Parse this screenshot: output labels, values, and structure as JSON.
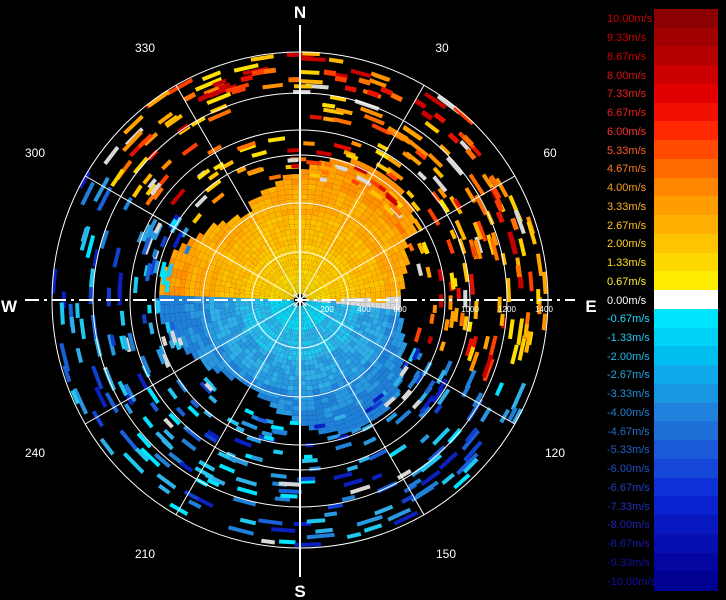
{
  "compass": {
    "north": "N",
    "south": "S",
    "east": "E",
    "west": "W",
    "bearings": [
      "30",
      "60",
      "120",
      "150",
      "210",
      "240",
      "300",
      "330"
    ]
  },
  "range_labels": [
    "200",
    "400",
    "600",
    "1000",
    "1200",
    "1400"
  ],
  "legend": {
    "labels": [
      "10.00m/s",
      "9.33m/s",
      "8.67m/s",
      "8.00m/s",
      "7.33m/s",
      "6.67m/s",
      "6.00m/s",
      "5.33m/s",
      "4.67m/s",
      "4.00m/s",
      "3.33m/s",
      "2.67m/s",
      "2.00m/s",
      "1.33m/s",
      "0.67m/s",
      "0.00m/s",
      "-0.67m/s",
      "-1.33m/s",
      "-2.00m/s",
      "-2.67m/s",
      "-3.33m/s",
      "-4.00m/s",
      "-4.67m/s",
      "-5.33m/s",
      "-6.00m/s",
      "-6.67m/s",
      "-7.33m/s",
      "-8.00m/s",
      "-8.67m/s",
      "-9.33m/s",
      "-10.00m/s"
    ],
    "colors": [
      "#8b0000",
      "#a00000",
      "#b50000",
      "#cc0000",
      "#e00000",
      "#f21000",
      "#ff2800",
      "#ff4a00",
      "#ff6a00",
      "#ff8600",
      "#ff9c00",
      "#ffb000",
      "#ffc400",
      "#ffd800",
      "#ffec00",
      "#ffffff",
      "#00e5ff",
      "#00d2f8",
      "#00bff0",
      "#10aaea",
      "#1896e2",
      "#1f82dc",
      "#1f6fd8",
      "#1a5ad8",
      "#1446d8",
      "#0e32d8",
      "#0a22d0",
      "#0818c0",
      "#0610b0",
      "#0408a0",
      "#020290"
    ],
    "text_colors": [
      "#cc0000",
      "#cc0000",
      "#cc0000",
      "#dd1010",
      "#ee2020",
      "#ee2020",
      "#ff3030",
      "#ff5a20",
      "#ff7a20",
      "#ff9a20",
      "#ffb020",
      "#ffc020",
      "#ffd020",
      "#ffe020",
      "#ffee30",
      "#ffffff",
      "#20d8ff",
      "#20c8f0",
      "#20b8e8",
      "#20a8e0",
      "#2090d8",
      "#2080d0",
      "#2070c8",
      "#2060c8",
      "#2050c0",
      "#2040c0",
      "#2030b8",
      "#2020b0",
      "#1818a8",
      "#1010a0",
      "#1010a0"
    ]
  }
}
